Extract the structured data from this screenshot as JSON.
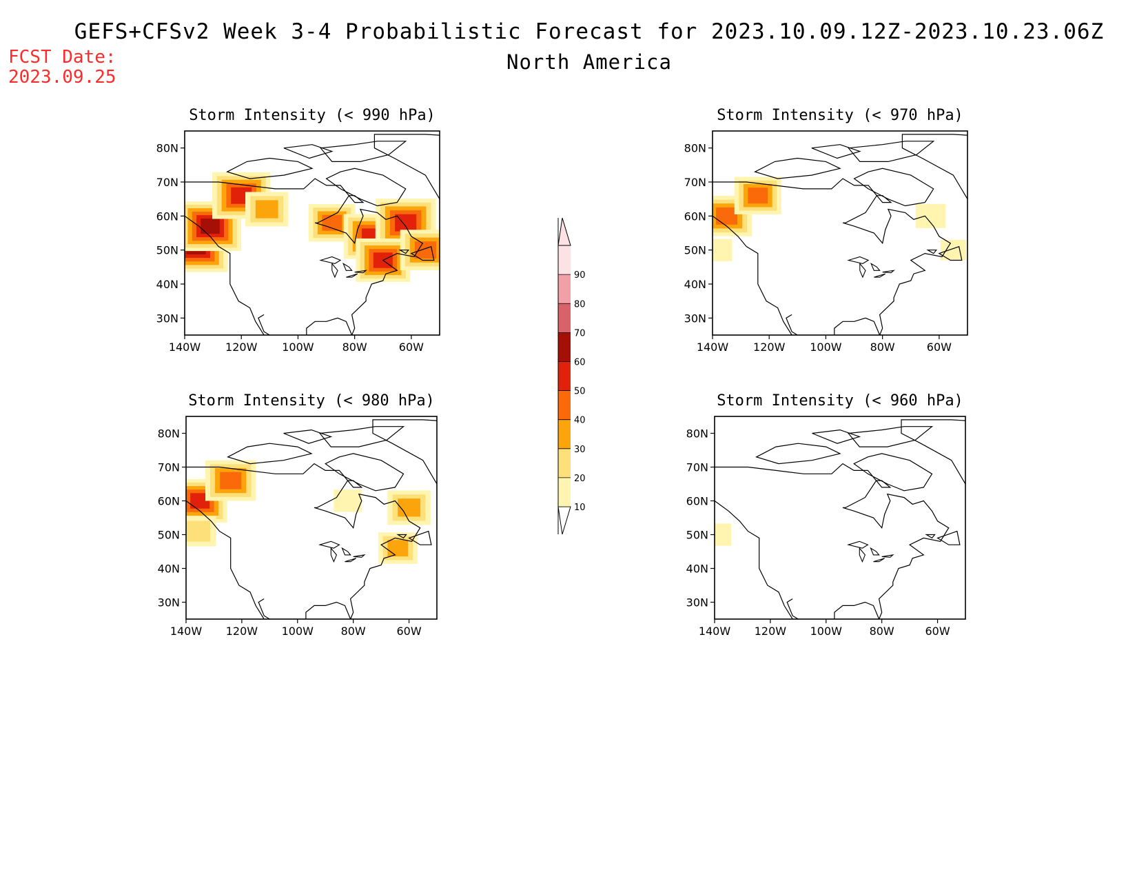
{
  "header": {
    "title": "GEFS+CFSv2 Week 3-4 Probabilistic Forecast for 2023.10.09.12Z-2023.10.23.06Z",
    "subtitle": "North America",
    "fcst_label": "FCST Date:",
    "fcst_date": "2023.09.25"
  },
  "colorbar": {
    "levels": [
      10,
      20,
      30,
      40,
      50,
      60,
      70,
      80,
      90
    ],
    "labels": [
      "10",
      "20",
      "30",
      "40",
      "50",
      "60",
      "70",
      "80",
      "90"
    ],
    "colors": [
      "#fff5b0",
      "#fde07a",
      "#fba40c",
      "#fa6a0a",
      "#e2210a",
      "#a50f05",
      "#d9616a",
      "#f0a0a6",
      "#fde2e5"
    ]
  },
  "chart_data": [
    {
      "type": "heatmap",
      "title": "Storm Intensity (< 990 hPa)",
      "lat_ticks": [
        "30N",
        "40N",
        "50N",
        "60N",
        "70N",
        "80N"
      ],
      "lon_ticks": [
        "140W",
        "120W",
        "100W",
        "80W",
        "60W"
      ],
      "extent": {
        "lon": [
          -140,
          -50
        ],
        "lat": [
          25,
          85
        ]
      },
      "blobs": [
        {
          "lon": -136,
          "lat": 51,
          "value": 62
        },
        {
          "lon": -131,
          "lat": 57,
          "value": 60
        },
        {
          "lon": -120,
          "lat": 66,
          "value": 55
        },
        {
          "lon": -111,
          "lat": 62,
          "value": 35
        },
        {
          "lon": -88,
          "lat": 58,
          "value": 40
        },
        {
          "lon": -74,
          "lat": 54,
          "value": 52
        },
        {
          "lon": -62,
          "lat": 58,
          "value": 58
        },
        {
          "lon": -70,
          "lat": 47,
          "value": 50
        },
        {
          "lon": -55,
          "lat": 50,
          "value": 45
        }
      ]
    },
    {
      "type": "heatmap",
      "title": "Storm Intensity (< 970 hPa)",
      "lat_ticks": [
        "30N",
        "40N",
        "50N",
        "60N",
        "70N",
        "80N"
      ],
      "lon_ticks": [
        "140W",
        "120W",
        "100W",
        "80W",
        "60W"
      ],
      "extent": {
        "lon": [
          -140,
          -50
        ],
        "lat": [
          25,
          85
        ]
      },
      "blobs": [
        {
          "lon": -135,
          "lat": 60,
          "value": 45
        },
        {
          "lon": -124,
          "lat": 66,
          "value": 40
        },
        {
          "lon": -138,
          "lat": 50,
          "value": 15
        },
        {
          "lon": -63,
          "lat": 60,
          "value": 18
        },
        {
          "lon": -55,
          "lat": 50,
          "value": 12
        }
      ]
    },
    {
      "type": "heatmap",
      "title": "Storm Intensity (< 980 hPa)",
      "lat_ticks": [
        "30N",
        "40N",
        "50N",
        "60N",
        "70N",
        "80N"
      ],
      "lon_ticks": [
        "140W",
        "120W",
        "100W",
        "80W",
        "60W"
      ],
      "extent": {
        "lon": [
          -140,
          -50
        ],
        "lat": [
          25,
          85
        ]
      },
      "blobs": [
        {
          "lon": -135,
          "lat": 60,
          "value": 50
        },
        {
          "lon": -124,
          "lat": 66,
          "value": 45
        },
        {
          "lon": -136,
          "lat": 51,
          "value": 28
        },
        {
          "lon": -60,
          "lat": 58,
          "value": 35
        },
        {
          "lon": -64,
          "lat": 46,
          "value": 30
        },
        {
          "lon": -82,
          "lat": 60,
          "value": 15
        }
      ]
    },
    {
      "type": "heatmap",
      "title": "Storm Intensity (< 960 hPa)",
      "lat_ticks": [
        "30N",
        "40N",
        "50N",
        "60N",
        "70N",
        "80N"
      ],
      "lon_ticks": [
        "140W",
        "120W",
        "100W",
        "80W",
        "60W"
      ],
      "extent": {
        "lon": [
          -140,
          -50
        ],
        "lat": [
          25,
          85
        ]
      },
      "blobs": [
        {
          "lon": -139,
          "lat": 50,
          "value": 15
        }
      ]
    }
  ]
}
